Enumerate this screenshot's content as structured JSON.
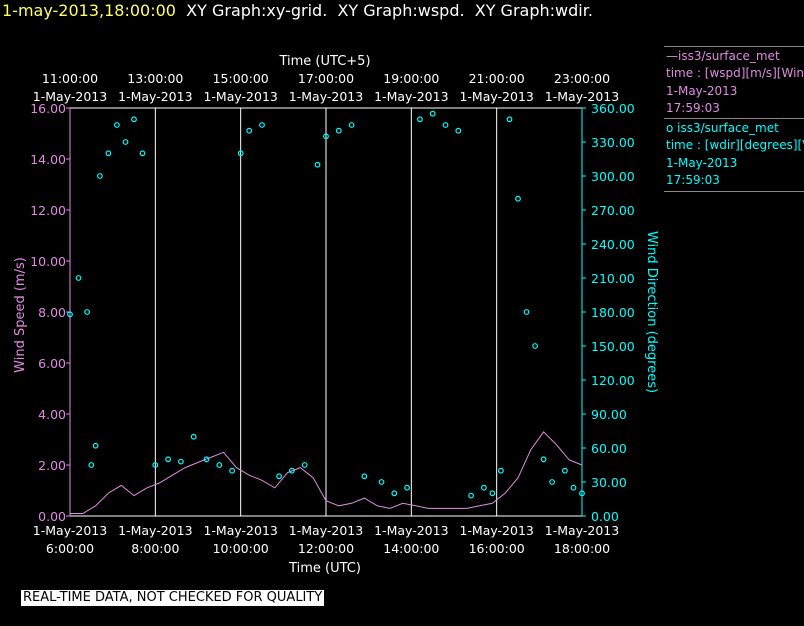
{
  "header": {
    "date_text": "1-may-2013,18:00:00",
    "graph_titles": "XY Graph:xy-grid.  XY Graph:wspd.  XY Graph:wdir."
  },
  "warning": "REAL-TIME DATA, NOT CHECKED FOR QUALITY",
  "legend": [
    {
      "line1": "iss3/surface_met",
      "line2": "time : [wspd][m/s][Wind",
      "line3": "1-May-2013",
      "line4": "17:59:03",
      "marker": "line",
      "color": "#e08be0"
    },
    {
      "line1": "iss3/surface_met",
      "line2": "time : [wdir][degrees][V",
      "line3": "1-May-2013",
      "line4": "17:59:03",
      "marker": "circle",
      "color": "#00ffff"
    }
  ],
  "colors": {
    "wspd": "#e08be0",
    "wdir": "#00ffff",
    "axes": "#ffffff",
    "grid": "#ffffff",
    "title_date": "#ffff66"
  },
  "chart_data": {
    "type": "scatter",
    "bottom_axis": {
      "label": "Time (UTC)",
      "ticks": [
        {
          "date": "1-May-2013",
          "time": "6:00:00"
        },
        {
          "date": "1-May-2013",
          "time": "8:00:00"
        },
        {
          "date": "1-May-2013",
          "time": "10:00:00"
        },
        {
          "date": "1-May-2013",
          "time": "12:00:00"
        },
        {
          "date": "1-May-2013",
          "time": "14:00:00"
        },
        {
          "date": "1-May-2013",
          "time": "16:00:00"
        },
        {
          "date": "1-May-2013",
          "time": "18:00:00"
        }
      ],
      "range_hours_utc": [
        6.0,
        18.0
      ]
    },
    "top_axis": {
      "label": "Time (UTC+5)",
      "ticks": [
        {
          "time": "11:00:00",
          "date": "1-May-2013"
        },
        {
          "time": "13:00:00",
          "date": "1-May-2013"
        },
        {
          "time": "15:00:00",
          "date": "1-May-2013"
        },
        {
          "time": "17:00:00",
          "date": "1-May-2013"
        },
        {
          "time": "19:00:00",
          "date": "1-May-2013"
        },
        {
          "time": "21:00:00",
          "date": "1-May-2013"
        },
        {
          "time": "23:00:00",
          "date": "1-May-2013"
        }
      ]
    },
    "left_axis": {
      "label": "Wind Speed (m/s)",
      "ticks": [
        "0.00",
        "2.00",
        "4.00",
        "6.00",
        "8.00",
        "10.00",
        "12.00",
        "14.00",
        "16.00"
      ],
      "range": [
        0,
        16
      ]
    },
    "right_axis": {
      "label": "Wind Direction (degrees)",
      "ticks": [
        "0.00",
        "30.00",
        "60.00",
        "90.00",
        "120.00",
        "150.00",
        "180.00",
        "210.00",
        "240.00",
        "270.00",
        "300.00",
        "330.00",
        "360.00"
      ],
      "range": [
        0,
        360
      ]
    },
    "grid": "vertical lines at each 2-hour tick",
    "series": [
      {
        "axis": "left",
        "style": "line",
        "x_hours_utc": [
          6.0,
          6.3,
          6.6,
          6.9,
          7.2,
          7.5,
          7.8,
          8.1,
          8.4,
          8.7,
          9.0,
          9.3,
          9.6,
          9.9,
          10.2,
          10.5,
          10.8,
          11.1,
          11.4,
          11.7,
          12.0,
          12.3,
          12.6,
          12.9,
          13.2,
          13.5,
          13.8,
          14.1,
          14.4,
          14.7,
          15.0,
          15.3,
          15.6,
          15.9,
          16.2,
          16.5,
          16.8,
          17.1,
          17.4,
          17.7,
          18.0
        ],
        "values": [
          0.1,
          0.1,
          0.4,
          0.9,
          1.2,
          0.8,
          1.1,
          1.3,
          1.6,
          1.9,
          2.1,
          2.3,
          2.5,
          1.9,
          1.6,
          1.4,
          1.1,
          1.7,
          1.9,
          1.5,
          0.6,
          0.4,
          0.5,
          0.7,
          0.4,
          0.3,
          0.5,
          0.4,
          0.3,
          0.3,
          0.3,
          0.3,
          0.4,
          0.5,
          0.9,
          1.5,
          2.6,
          3.3,
          2.8,
          2.2,
          2.0
        ]
      },
      {
        "axis": "right",
        "style": "circle",
        "x_hours_utc": [
          6.0,
          6.2,
          6.4,
          6.5,
          6.6,
          6.7,
          6.9,
          7.1,
          7.3,
          7.5,
          7.7,
          8.0,
          8.3,
          8.6,
          8.9,
          9.2,
          9.5,
          9.8,
          10.0,
          10.2,
          10.5,
          10.9,
          11.2,
          11.5,
          11.8,
          12.0,
          12.3,
          12.6,
          12.9,
          13.3,
          13.6,
          13.9,
          14.2,
          14.5,
          14.8,
          15.1,
          15.4,
          15.7,
          15.9,
          16.1,
          16.3,
          16.5,
          16.7,
          16.9,
          17.1,
          17.3,
          17.6,
          17.8,
          18.0
        ],
        "values": [
          178,
          210,
          180,
          45,
          62,
          300,
          320,
          345,
          330,
          350,
          320,
          45,
          50,
          48,
          70,
          50,
          45,
          40,
          320,
          340,
          345,
          35,
          40,
          45,
          310,
          335,
          340,
          345,
          35,
          30,
          20,
          25,
          350,
          355,
          345,
          340,
          18,
          25,
          20,
          40,
          350,
          280,
          180,
          150,
          50,
          30,
          40,
          25,
          20
        ]
      }
    ]
  }
}
